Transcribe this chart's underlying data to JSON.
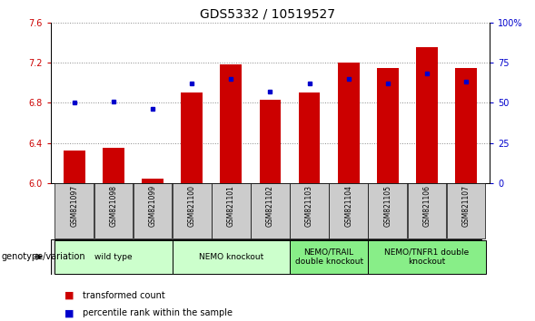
{
  "title": "GDS5332 / 10519527",
  "samples": [
    "GSM821097",
    "GSM821098",
    "GSM821099",
    "GSM821100",
    "GSM821101",
    "GSM821102",
    "GSM821103",
    "GSM821104",
    "GSM821105",
    "GSM821106",
    "GSM821107"
  ],
  "red_values": [
    6.32,
    6.35,
    6.04,
    6.9,
    7.18,
    6.83,
    6.9,
    7.2,
    7.15,
    7.35,
    7.15
  ],
  "blue_values": [
    50,
    51,
    46,
    62,
    65,
    57,
    62,
    65,
    62,
    68,
    63
  ],
  "ymin": 6.0,
  "ymax": 7.6,
  "y2min": 0,
  "y2max": 100,
  "yticks": [
    6.0,
    6.4,
    6.8,
    7.2,
    7.6
  ],
  "y2ticks": [
    0,
    25,
    50,
    75,
    100
  ],
  "bar_color": "#cc0000",
  "dot_color": "#0000cc",
  "bar_width": 0.55,
  "groups": [
    {
      "label": "wild type",
      "start": 0,
      "end": 3,
      "color": "#ccffcc"
    },
    {
      "label": "NEMO knockout",
      "start": 3,
      "end": 6,
      "color": "#ccffcc"
    },
    {
      "label": "NEMO/TRAIL\ndouble knockout",
      "start": 6,
      "end": 8,
      "color": "#88ee88"
    },
    {
      "label": "NEMO/TNFR1 double\nknockout",
      "start": 8,
      "end": 11,
      "color": "#88ee88"
    }
  ],
  "legend_items": [
    {
      "label": "transformed count",
      "color": "#cc0000"
    },
    {
      "label": "percentile rank within the sample",
      "color": "#0000cc"
    }
  ],
  "genotype_label": "genotype/variation",
  "grid_color": "#888888",
  "sample_box_color": "#cccccc",
  "title_fontsize": 10,
  "tick_fontsize": 7,
  "sample_fontsize": 5.5,
  "group_fontsize": 6.5,
  "legend_fontsize": 7,
  "genotype_fontsize": 7
}
